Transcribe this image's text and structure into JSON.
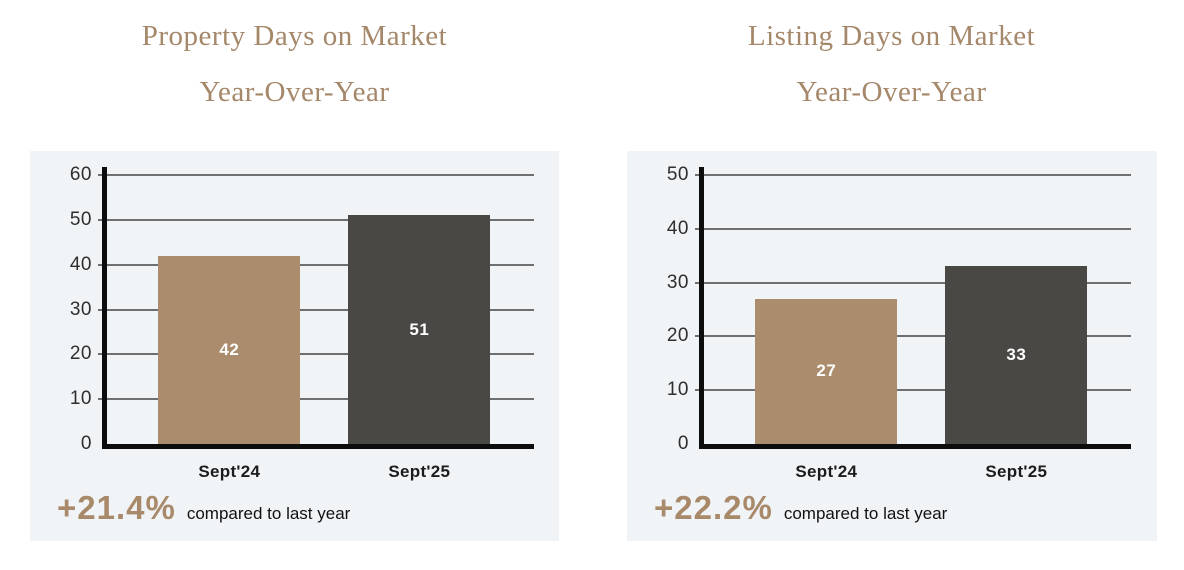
{
  "colors": {
    "title_text": "#a5876a",
    "panel_background": "#f1f4f7",
    "bar_previous_year": "#ab8d6d",
    "bar_current_year": "#4a4845",
    "axis": "#0d0d0d",
    "gridline": "#6f6f6f",
    "bar_value_text": "#ffffff",
    "percent_text": "#a8896a",
    "note_text": "#111111"
  },
  "chart_data": [
    {
      "type": "bar",
      "title": "Property Days on Market",
      "subtitle": "Year-Over-Year",
      "categories": [
        "Sept'24",
        "Sept'25"
      ],
      "values": [
        42,
        51
      ],
      "bar_colors": [
        "#ab8d6d",
        "#4a4845"
      ],
      "value_labels": [
        "42",
        "51"
      ],
      "ylim": [
        0,
        60
      ],
      "yticks": [
        60,
        50,
        40,
        30,
        20,
        10,
        0
      ],
      "grid": true,
      "legend": "none",
      "change_value": "+21.4%",
      "change_note": "compared to last year"
    },
    {
      "type": "bar",
      "title": "Listing Days on Market",
      "subtitle": "Year-Over-Year",
      "categories": [
        "Sept'24",
        "Sept'25"
      ],
      "values": [
        27,
        33
      ],
      "bar_colors": [
        "#ab8d6d",
        "#4a4845"
      ],
      "value_labels": [
        "27",
        "33"
      ],
      "ylim": [
        0,
        50
      ],
      "yticks": [
        50,
        40,
        30,
        20,
        10,
        0
      ],
      "grid": true,
      "legend": "none",
      "change_value": "+22.2%",
      "change_note": "compared to last year"
    }
  ]
}
